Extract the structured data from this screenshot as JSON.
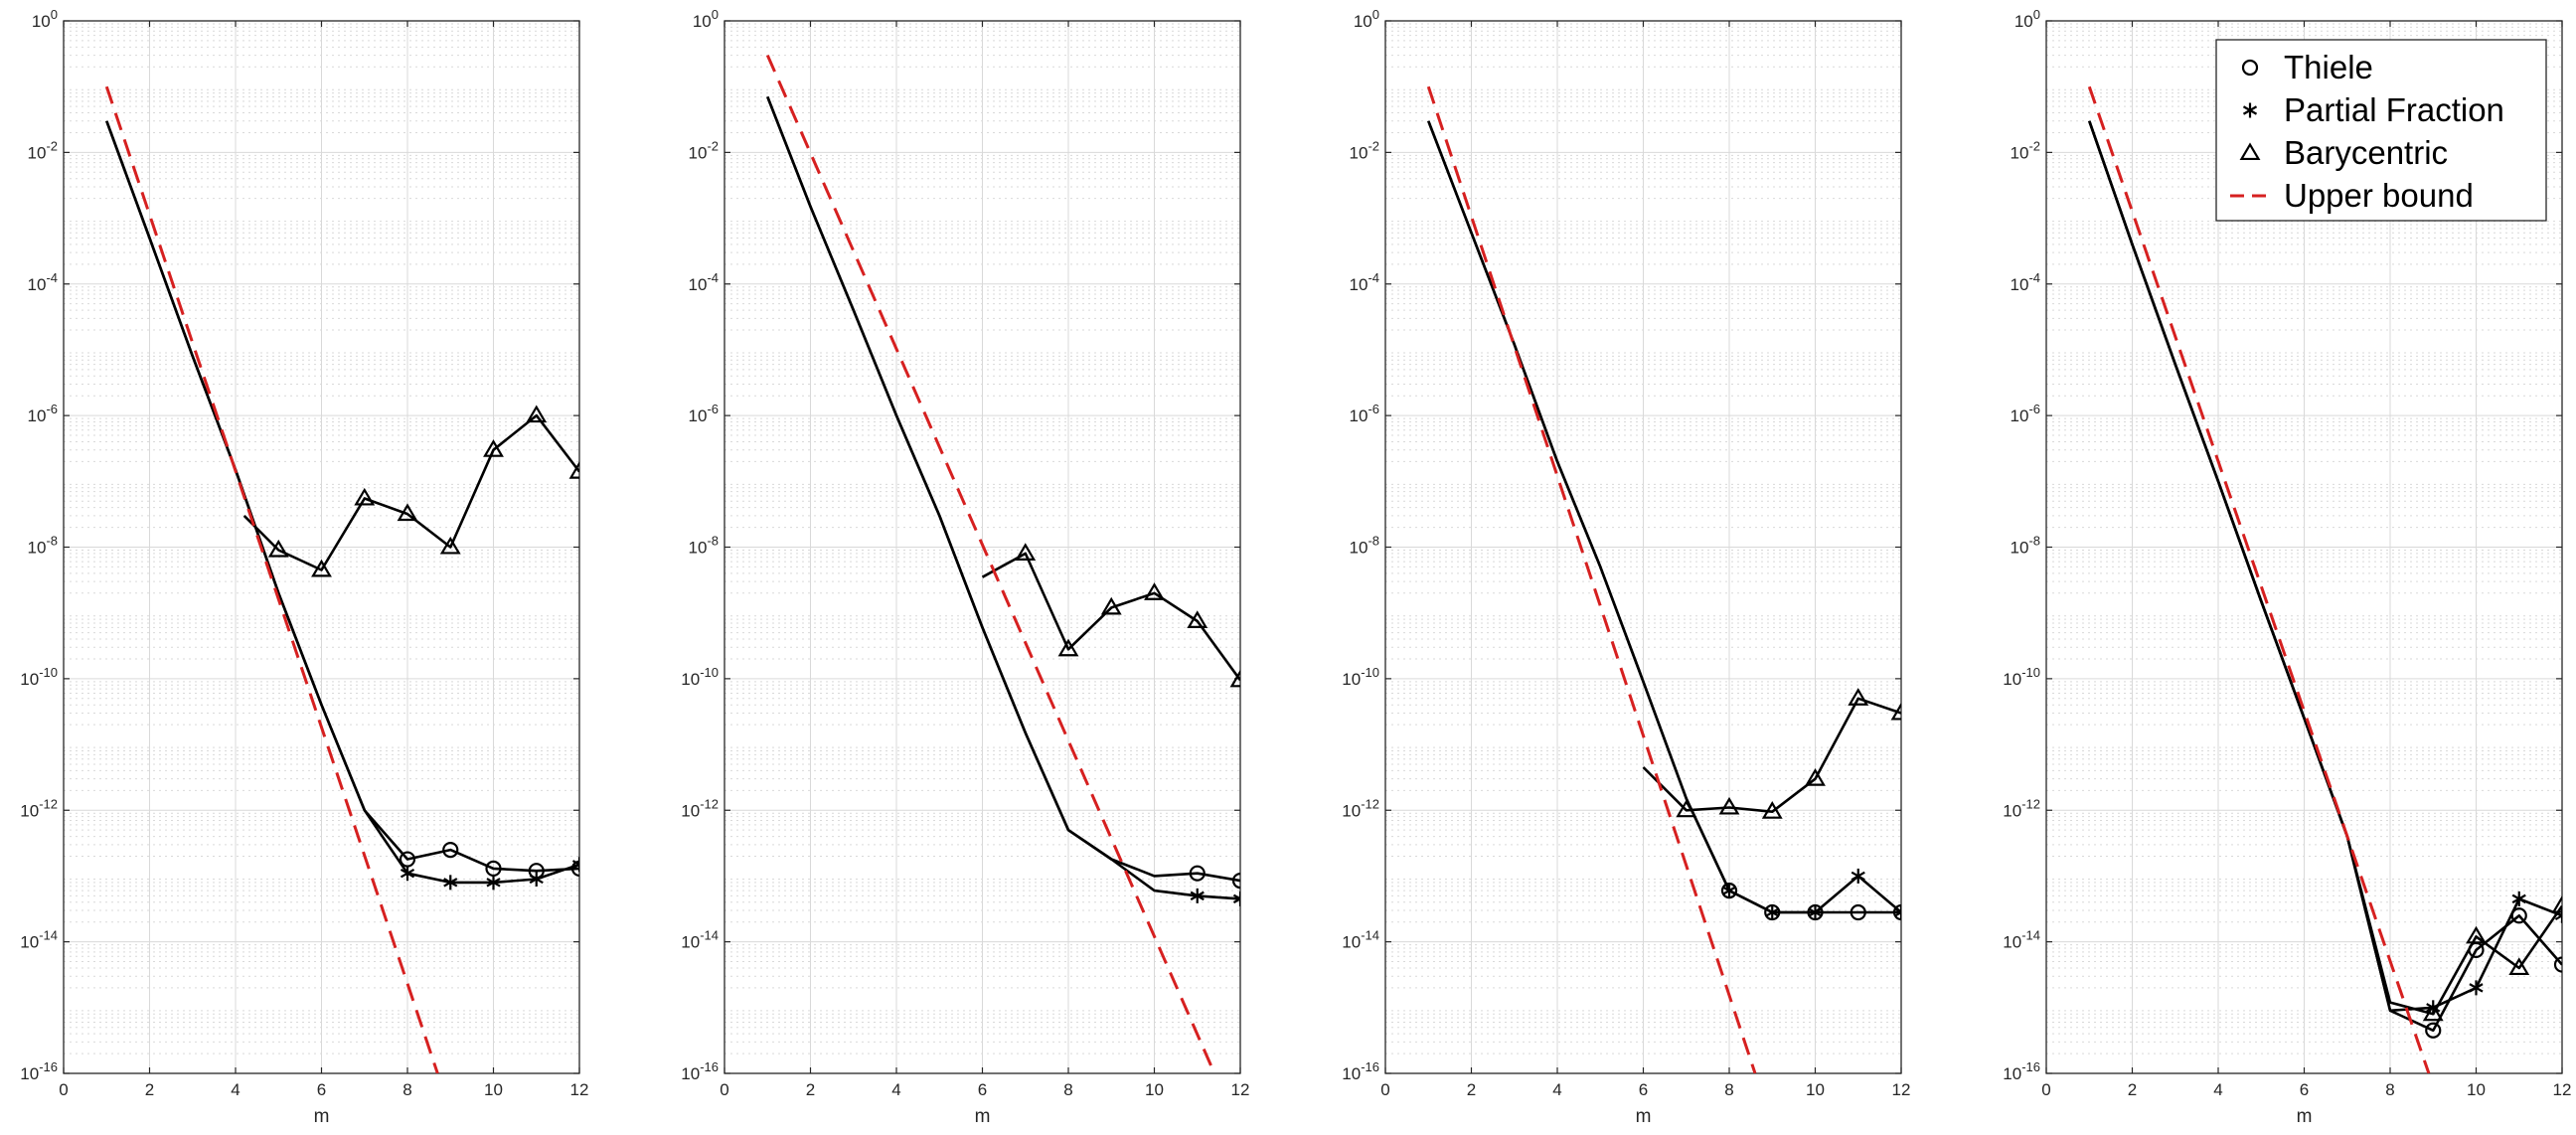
{
  "figure": {
    "legend_entries": [
      {
        "label": "Thiele",
        "marker": "circle",
        "style": "marker"
      },
      {
        "label": "Partial Fraction",
        "marker": "asterisk",
        "style": "marker"
      },
      {
        "label": "Barycentric",
        "marker": "triangle",
        "style": "marker"
      },
      {
        "label": "Upper bound",
        "marker": "none",
        "style": "dashed"
      }
    ],
    "colors": {
      "data": "#000000",
      "bound": "#d62020",
      "grid": "#d9d9d9",
      "axis": "#262626"
    }
  },
  "chart_data": [
    {
      "type": "line",
      "xlabel": "m",
      "ylabel": "",
      "xlim": [
        0,
        12
      ],
      "ylim": [
        1e-16,
        1
      ],
      "yscale": "log",
      "grid": true,
      "x_ticks": [
        "0",
        "2",
        "4",
        "6",
        "8",
        "10",
        "12"
      ],
      "y_ticks": [
        {
          "base": "10",
          "exp": "-16"
        },
        {
          "base": "10",
          "exp": "-14"
        },
        {
          "base": "10",
          "exp": "-12"
        },
        {
          "base": "10",
          "exp": "-10"
        },
        {
          "base": "10",
          "exp": "-8"
        },
        {
          "base": "10",
          "exp": "-6"
        },
        {
          "base": "10",
          "exp": "-4"
        },
        {
          "base": "10",
          "exp": "-2"
        },
        {
          "base": "10",
          "exp": "0"
        }
      ],
      "legend": "none",
      "series": [
        {
          "name": "Thiele",
          "marker": "circle",
          "x": [
            1,
            2,
            3,
            4,
            5,
            6,
            7,
            8,
            9,
            10,
            11,
            12
          ],
          "y": [
            0.03,
            0.0005,
            8e-06,
            1.5e-07,
            2e-09,
            4e-11,
            1e-12,
            1.8e-13,
            2.5e-13,
            1.3e-13,
            1.2e-13,
            1.3e-13
          ],
          "marker_x": [
            8,
            9,
            10,
            11,
            12
          ]
        },
        {
          "name": "Partial Fraction",
          "marker": "asterisk",
          "x": [
            1,
            2,
            3,
            4,
            5,
            6,
            7,
            8,
            9,
            10,
            11,
            12
          ],
          "y": [
            0.03,
            0.0005,
            8e-06,
            1.5e-07,
            2e-09,
            4e-11,
            1e-12,
            1.1e-13,
            8e-14,
            8e-14,
            9e-14,
            1.5e-13
          ],
          "marker_x": [
            8,
            9,
            10,
            11,
            12
          ]
        },
        {
          "name": "Barycentric",
          "marker": "triangle",
          "x": [
            4.2,
            5,
            6,
            7,
            8,
            9,
            10,
            11,
            12
          ],
          "y": [
            3e-08,
            9e-09,
            4.5e-09,
            5.5e-08,
            3.2e-08,
            1e-08,
            3e-07,
            1e-06,
            1.4e-07
          ],
          "marker_x": [
            5,
            6,
            7,
            8,
            9,
            10,
            11,
            12
          ]
        },
        {
          "name": "Upper bound",
          "marker": "none",
          "x": [
            1,
            8.7
          ],
          "y": [
            0.1,
            1e-16
          ]
        }
      ]
    },
    {
      "type": "line",
      "xlabel": "m",
      "ylabel": "",
      "xlim": [
        0,
        12
      ],
      "ylim": [
        1e-16,
        1
      ],
      "yscale": "log",
      "grid": true,
      "x_ticks": [
        "0",
        "2",
        "4",
        "6",
        "8",
        "10",
        "12"
      ],
      "y_ticks": [
        {
          "base": "10",
          "exp": "-16"
        },
        {
          "base": "10",
          "exp": "-14"
        },
        {
          "base": "10",
          "exp": "-12"
        },
        {
          "base": "10",
          "exp": "-10"
        },
        {
          "base": "10",
          "exp": "-8"
        },
        {
          "base": "10",
          "exp": "-6"
        },
        {
          "base": "10",
          "exp": "-4"
        },
        {
          "base": "10",
          "exp": "-2"
        },
        {
          "base": "10",
          "exp": "0"
        }
      ],
      "legend": "none",
      "series": [
        {
          "name": "Thiele",
          "marker": "circle",
          "x": [
            1,
            2,
            3,
            4,
            5,
            6,
            7,
            8,
            9,
            10,
            11,
            12
          ],
          "y": [
            0.07,
            0.0015,
            4e-05,
            1e-06,
            3e-08,
            6e-10,
            1.5e-11,
            5e-13,
            1.8e-13,
            1e-13,
            1.1e-13,
            8.5e-14
          ],
          "marker_x": [
            11,
            12
          ]
        },
        {
          "name": "Partial Fraction",
          "marker": "asterisk",
          "x": [
            1,
            2,
            3,
            4,
            5,
            6,
            7,
            8,
            9,
            10,
            11,
            12
          ],
          "y": [
            0.07,
            0.0015,
            4e-05,
            1e-06,
            3e-08,
            6e-10,
            1.5e-11,
            5e-13,
            1.8e-13,
            6e-14,
            5e-14,
            4.5e-14
          ],
          "marker_x": [
            11,
            12
          ]
        },
        {
          "name": "Barycentric",
          "marker": "triangle",
          "x": [
            6,
            7,
            8,
            9,
            10,
            11,
            12
          ],
          "y": [
            3.5e-09,
            8e-09,
            2.8e-10,
            1.2e-09,
            2e-09,
            7.5e-10,
            9.5e-11
          ],
          "marker_x": [
            7,
            8,
            9,
            10,
            11,
            12
          ]
        },
        {
          "name": "Upper bound",
          "marker": "none",
          "x": [
            1,
            11.4
          ],
          "y": [
            0.3,
            1e-16
          ]
        }
      ]
    },
    {
      "type": "line",
      "xlabel": "m",
      "ylabel": "",
      "xlim": [
        0,
        12
      ],
      "ylim": [
        1e-16,
        1
      ],
      "yscale": "log",
      "grid": true,
      "x_ticks": [
        "0",
        "2",
        "4",
        "6",
        "8",
        "10",
        "12"
      ],
      "y_ticks": [
        {
          "base": "10",
          "exp": "-16"
        },
        {
          "base": "10",
          "exp": "-14"
        },
        {
          "base": "10",
          "exp": "-12"
        },
        {
          "base": "10",
          "exp": "-10"
        },
        {
          "base": "10",
          "exp": "-8"
        },
        {
          "base": "10",
          "exp": "-6"
        },
        {
          "base": "10",
          "exp": "-4"
        },
        {
          "base": "10",
          "exp": "-2"
        },
        {
          "base": "10",
          "exp": "0"
        }
      ],
      "legend": "none",
      "series": [
        {
          "name": "Thiele",
          "marker": "circle",
          "x": [
            1,
            2,
            3,
            4,
            5,
            6,
            7,
            8,
            9,
            10,
            11,
            12
          ],
          "y": [
            0.03,
            0.0006,
            1.2e-05,
            2e-07,
            5e-09,
            9e-11,
            1.5e-12,
            6e-14,
            2.8e-14,
            2.8e-14,
            2.8e-14,
            2.8e-14
          ],
          "marker_x": [
            8,
            9,
            10,
            11,
            12
          ]
        },
        {
          "name": "Partial Fraction",
          "marker": "asterisk",
          "x": [
            1,
            2,
            3,
            4,
            5,
            6,
            7,
            8,
            9,
            10,
            11,
            12
          ],
          "y": [
            0.03,
            0.0006,
            1.2e-05,
            2e-07,
            5e-09,
            9e-11,
            1.5e-12,
            6e-14,
            2.8e-14,
            2.8e-14,
            1e-13,
            2.8e-14
          ],
          "marker_x": [
            8,
            9,
            10,
            11,
            12
          ]
        },
        {
          "name": "Barycentric",
          "marker": "triangle",
          "x": [
            6,
            7,
            8,
            9,
            10,
            11,
            12
          ],
          "y": [
            4.5e-12,
            1e-12,
            1.1e-12,
            9.5e-13,
            3e-12,
            5e-11,
            3e-11
          ],
          "marker_x": [
            7,
            8,
            9,
            10,
            11,
            12
          ]
        },
        {
          "name": "Upper bound",
          "marker": "none",
          "x": [
            1,
            8.6
          ],
          "y": [
            0.1,
            1e-16
          ]
        }
      ]
    },
    {
      "type": "line",
      "xlabel": "m",
      "ylabel": "",
      "xlim": [
        0,
        12
      ],
      "ylim": [
        1e-16,
        1
      ],
      "yscale": "log",
      "grid": true,
      "x_ticks": [
        "0",
        "2",
        "4",
        "6",
        "8",
        "10",
        "12"
      ],
      "y_ticks": [
        {
          "base": "10",
          "exp": "-16"
        },
        {
          "base": "10",
          "exp": "-14"
        },
        {
          "base": "10",
          "exp": "-12"
        },
        {
          "base": "10",
          "exp": "-10"
        },
        {
          "base": "10",
          "exp": "-8"
        },
        {
          "base": "10",
          "exp": "-6"
        },
        {
          "base": "10",
          "exp": "-4"
        },
        {
          "base": "10",
          "exp": "-2"
        },
        {
          "base": "10",
          "exp": "0"
        }
      ],
      "legend": "top-right",
      "series": [
        {
          "name": "Thiele",
          "marker": "circle",
          "x": [
            1,
            2,
            3,
            4,
            5,
            6,
            7,
            8,
            9,
            10,
            11,
            12
          ],
          "y": [
            0.03,
            0.0004,
            6e-06,
            1e-07,
            1.5e-09,
            2.5e-11,
            4e-13,
            9e-16,
            4.5e-16,
            7.5e-15,
            2.5e-14,
            4.5e-15
          ],
          "marker_x": [
            9,
            10,
            11,
            12
          ]
        },
        {
          "name": "Partial Fraction",
          "marker": "asterisk",
          "x": [
            1,
            2,
            3,
            4,
            5,
            6,
            7,
            8,
            9,
            10,
            11,
            12
          ],
          "y": [
            0.03,
            0.0004,
            6e-06,
            1e-07,
            1.5e-09,
            2.5e-11,
            4e-13,
            9e-16,
            1e-15,
            2e-15,
            4.5e-14,
            2.5e-14
          ],
          "marker_x": [
            9,
            10,
            11,
            12
          ]
        },
        {
          "name": "Barycentric",
          "marker": "triangle",
          "x": [
            1,
            2,
            3,
            4,
            5,
            6,
            7,
            8,
            9,
            10,
            11,
            12
          ],
          "y": [
            0.03,
            0.0004,
            6e-06,
            1e-07,
            1.5e-09,
            2.5e-11,
            4e-13,
            1.2e-15,
            8e-16,
            1.2e-14,
            4e-15,
            3.5e-14
          ],
          "marker_x": [
            9,
            10,
            11,
            12
          ]
        },
        {
          "name": "Upper bound",
          "marker": "none",
          "x": [
            1,
            8.9
          ],
          "y": [
            0.1,
            1e-16
          ]
        }
      ]
    }
  ]
}
